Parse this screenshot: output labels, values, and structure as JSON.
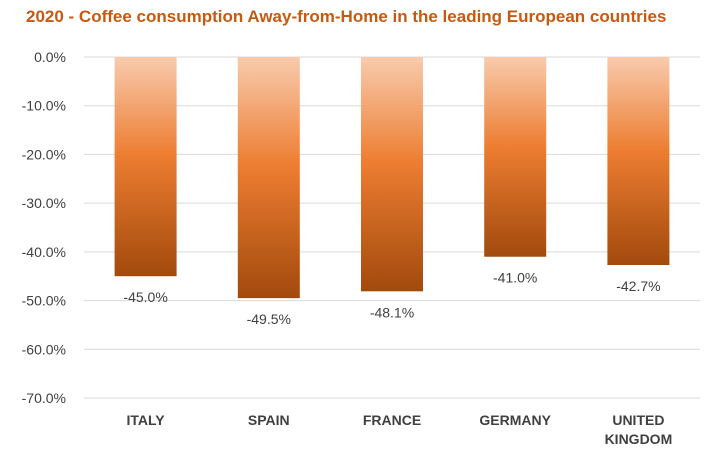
{
  "chart_data": {
    "type": "bar",
    "title": "2020  - Coffee consumption Away-from-Home in the leading European countries",
    "categories": [
      [
        "ITALY"
      ],
      [
        "SPAIN"
      ],
      [
        "FRANCE"
      ],
      [
        "GERMANY"
      ],
      [
        "UNITED",
        "KINGDOM"
      ]
    ],
    "values": [
      -45.0,
      -49.5,
      -48.1,
      -41.0,
      -42.7
    ],
    "value_labels": [
      "-45.0%",
      "-49.5%",
      "-48.1%",
      "-41.0%",
      "-42.7%"
    ],
    "ylim": [
      -70,
      0
    ],
    "yticks": [
      0,
      -10,
      -20,
      -30,
      -40,
      -50,
      -60,
      -70
    ],
    "ytick_labels": [
      "0.0%",
      "-10.0%",
      "-20.0%",
      "-30.0%",
      "-40.0%",
      "-50.0%",
      "-60.0%",
      "-70.0%"
    ],
    "grid": true,
    "bar_color_top": "#f8cbad",
    "bar_color_mid": "#ed7d31",
    "bar_color_bottom": "#a24a0d",
    "title_color": "#c55a11"
  }
}
